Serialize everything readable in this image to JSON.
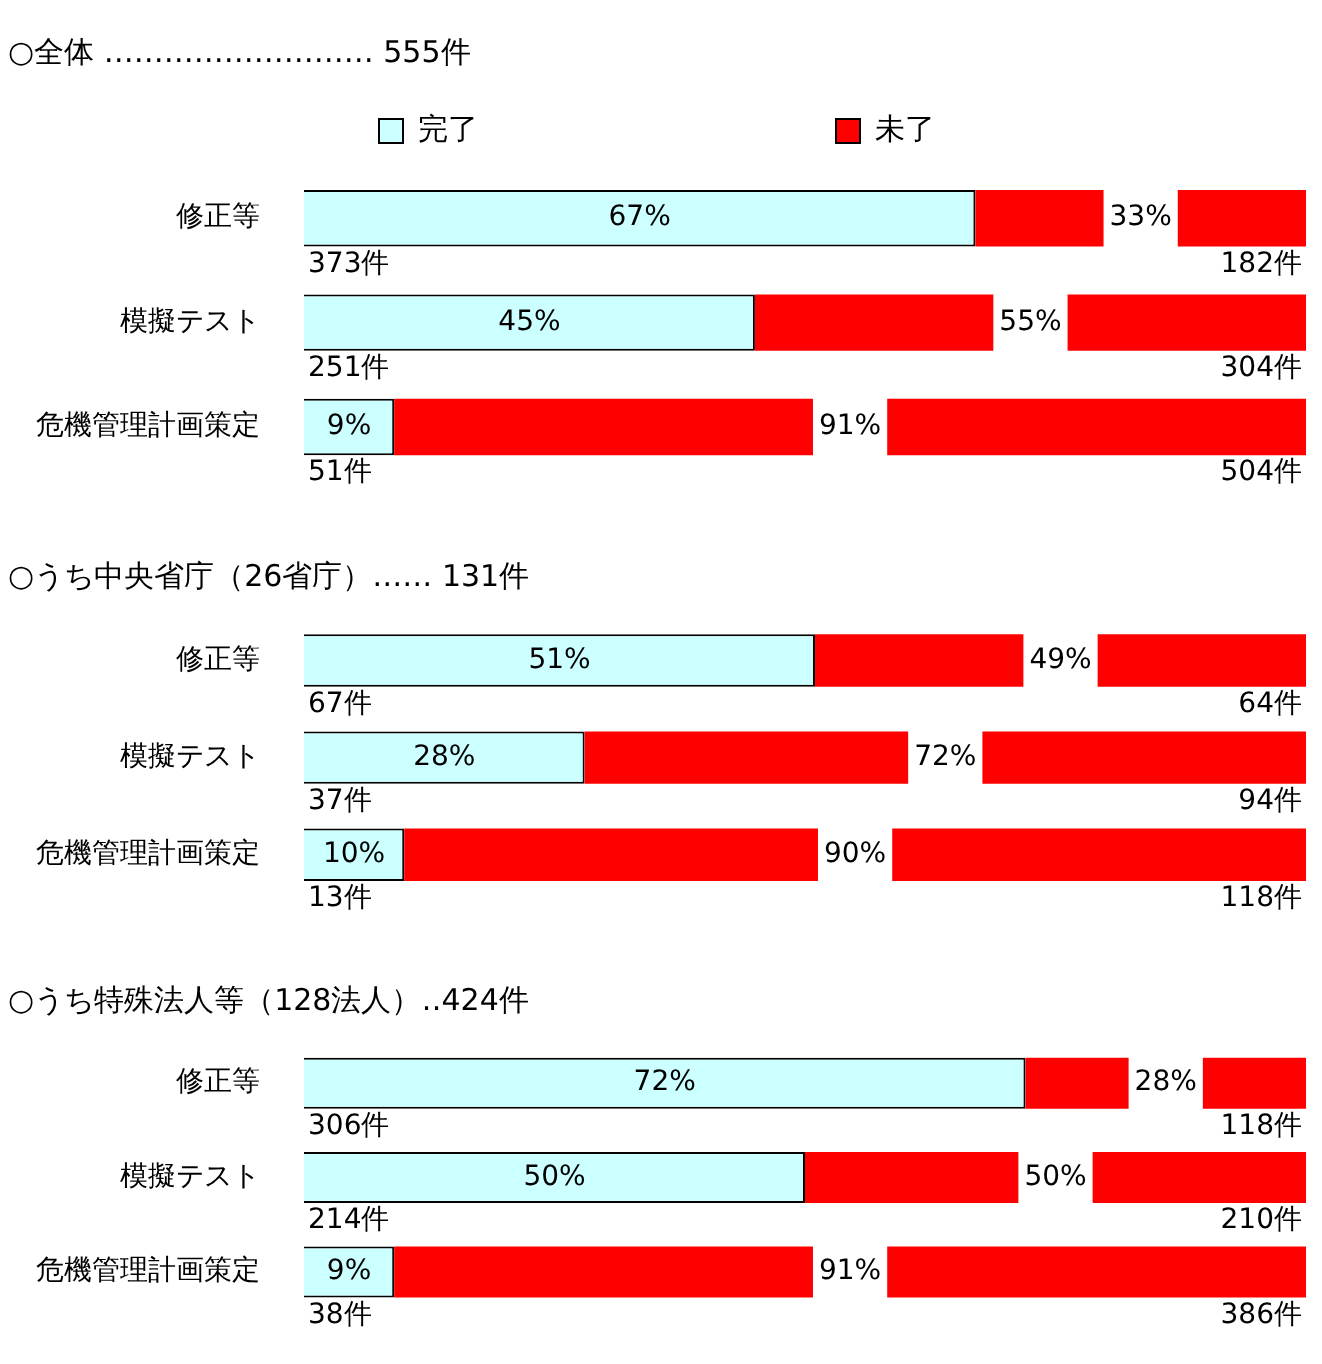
{
  "chart_data": [
    {
      "type": "bar",
      "orientation": "horizontal",
      "stacked": true,
      "title": "○全体 ……………………… 555件",
      "categories": [
        "修正等",
        "模擬テスト",
        "危機管理計画策定"
      ],
      "series": [
        {
          "name": "完了",
          "color": "#ccffff",
          "values": [
            67,
            45,
            9
          ],
          "value_labels": [
            "67%",
            "45%",
            "9%"
          ]
        },
        {
          "name": "未了",
          "color": "#ff0000",
          "values": [
            33,
            55,
            91
          ],
          "value_labels": [
            "33%",
            "55%",
            "91%"
          ]
        }
      ],
      "xlim": [
        0,
        100
      ],
      "tick_labels": "y",
      "grid": false,
      "legend": "top",
      "annotations": [
        "373件",
        "182件",
        "251件",
        "304件",
        "51件",
        "504件"
      ]
    },
    {
      "type": "bar",
      "orientation": "horizontal",
      "stacked": true,
      "title": "○うち中央省庁（26省庁）…… 131件",
      "categories": [
        "修正等",
        "模擬テスト",
        "危機管理計画策定"
      ],
      "series": [
        {
          "color": "#ccffff",
          "values": [
            51,
            28,
            10
          ],
          "value_labels": [
            "51%",
            "28%",
            "10%"
          ]
        },
        {
          "color": "#ff0000",
          "values": [
            49,
            72,
            90
          ],
          "value_labels": [
            "49%",
            "72%",
            "90%"
          ]
        }
      ],
      "xlim": [
        0,
        100
      ],
      "tick_labels": "y",
      "grid": false,
      "legend": false,
      "annotations": [
        "67件",
        "64件",
        "37件",
        "94件",
        "13件",
        "118件"
      ]
    },
    {
      "type": "bar",
      "orientation": "horizontal",
      "stacked": true,
      "title": "○うち特殊法人等（128法人）‥424件",
      "categories": [
        "修正等",
        "模擬テスト",
        "危機管理計画策定"
      ],
      "series": [
        {
          "color": "#ccffff",
          "values": [
            72,
            50,
            9
          ],
          "value_labels": [
            "72%",
            "50%",
            "9%"
          ]
        },
        {
          "color": "#ff0000",
          "values": [
            28,
            50,
            91
          ],
          "value_labels": [
            "28%",
            "50%",
            "91%"
          ]
        }
      ],
      "xlim": [
        0,
        100
      ],
      "tick_labels": "y",
      "grid": false,
      "legend": false,
      "annotations": [
        "306件",
        "118件",
        "214件",
        "210件",
        "38件",
        "386件"
      ]
    }
  ]
}
